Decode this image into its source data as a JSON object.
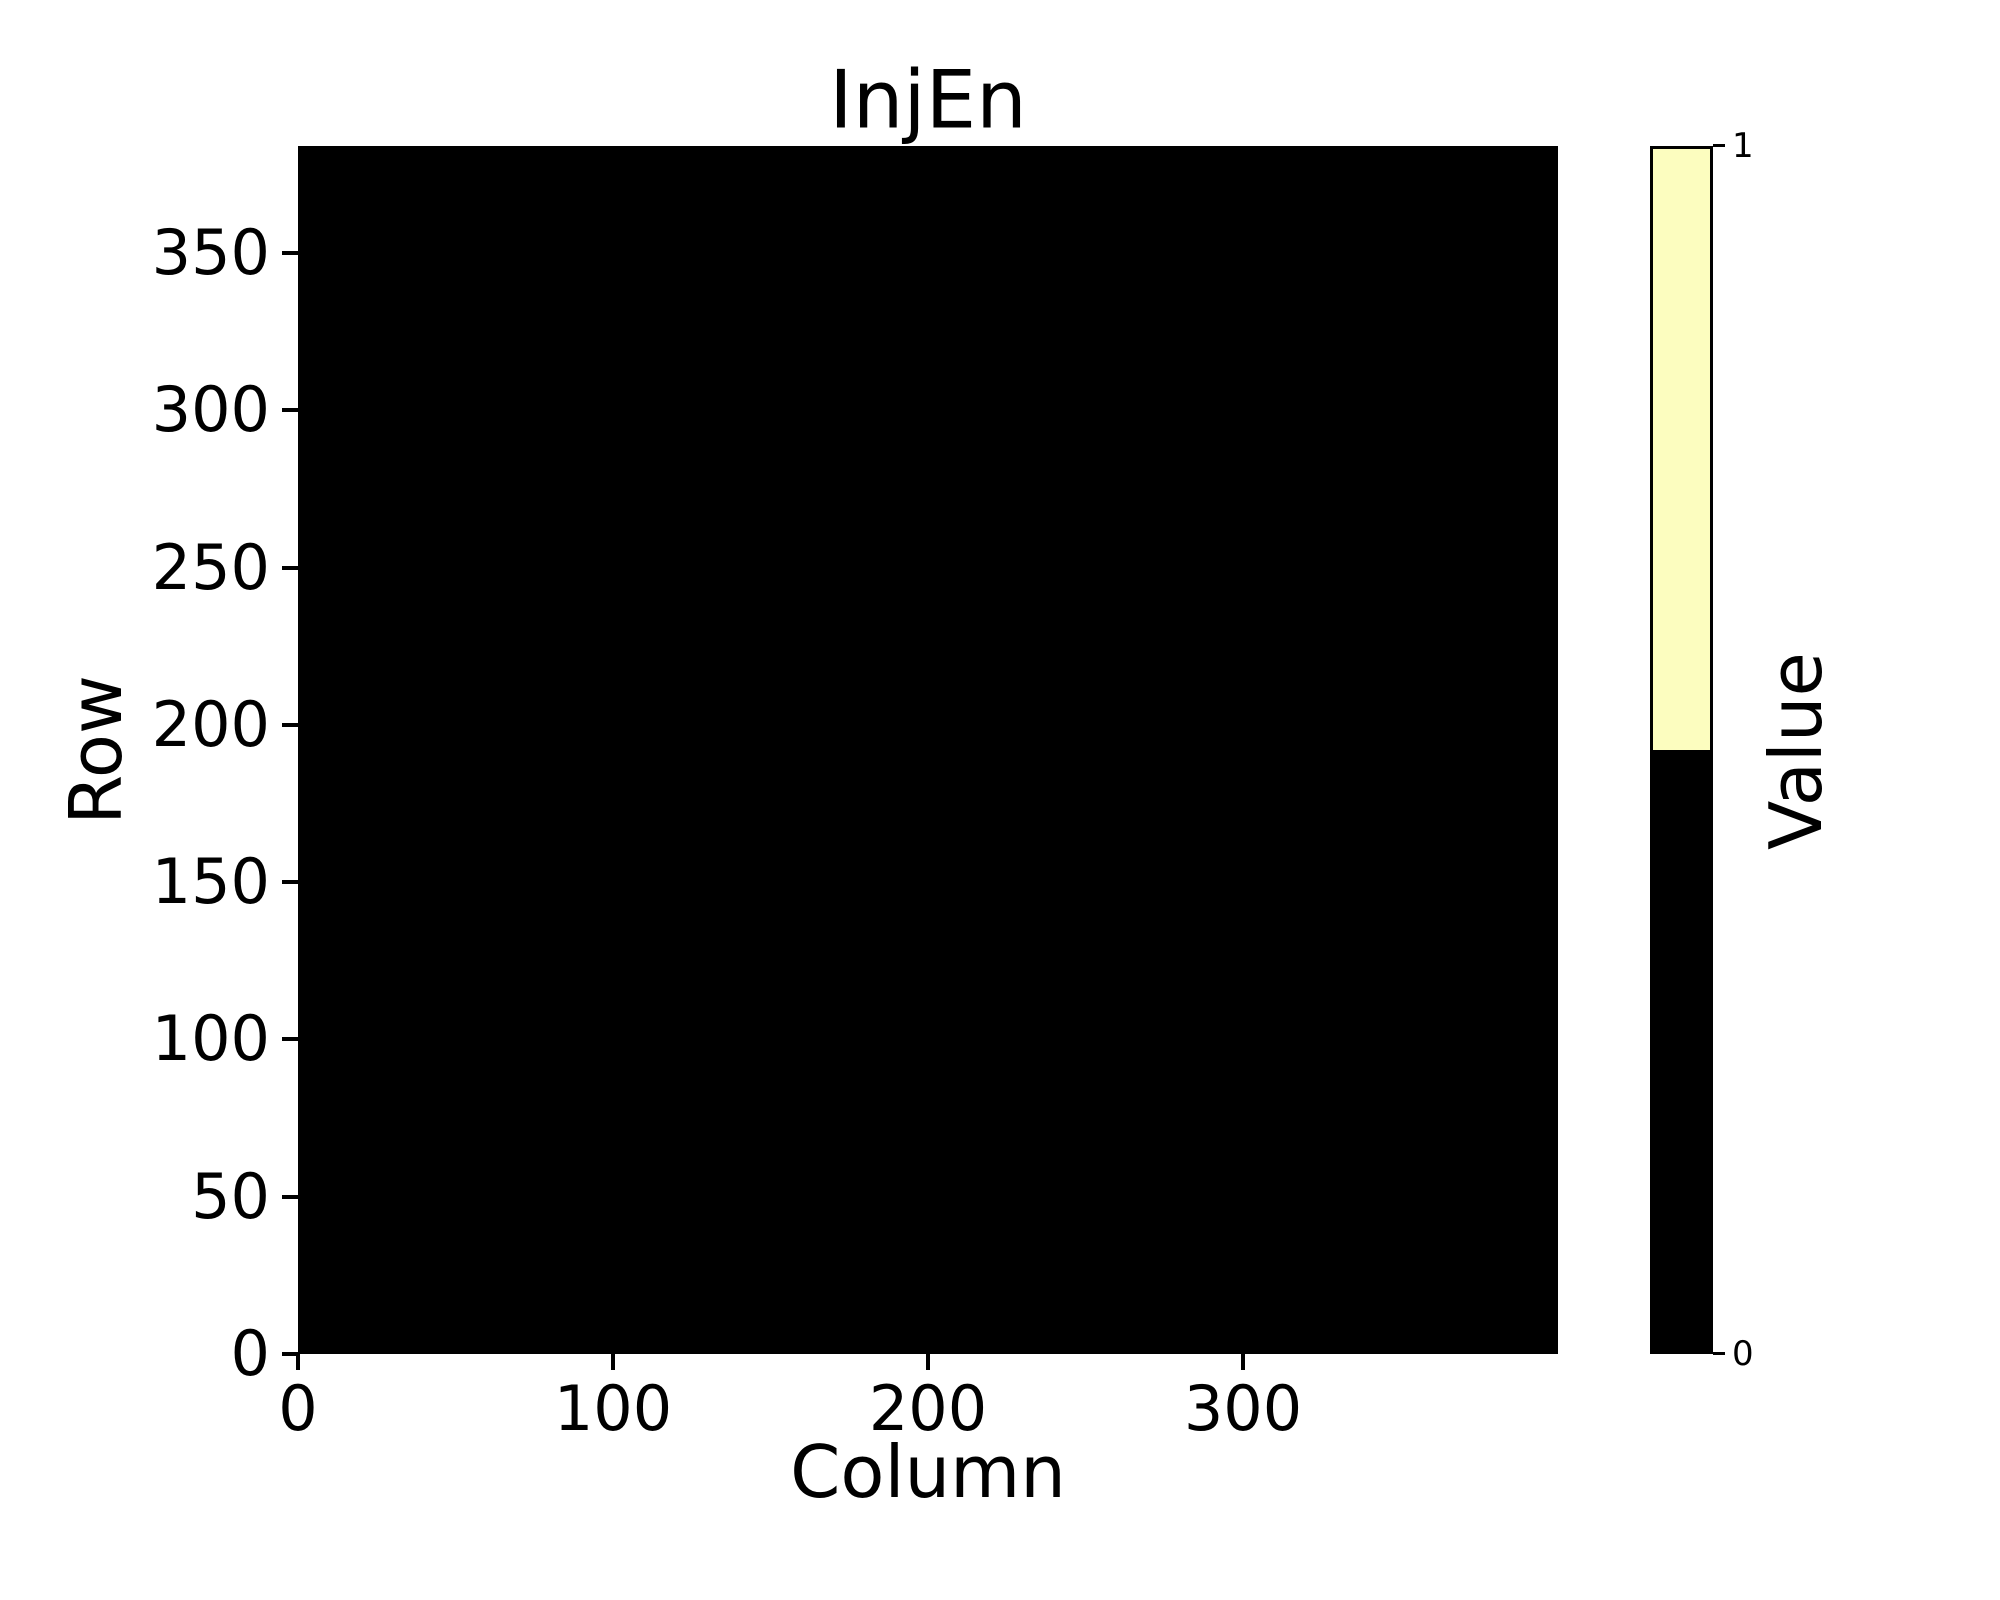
{
  "figure": {
    "background_color": "#ffffff",
    "text_color": "#000000"
  },
  "chart_data": {
    "type": "heatmap",
    "title": "InjEn",
    "xlabel": "Column",
    "ylabel": "Row",
    "x_range": [
      0,
      400
    ],
    "y_range": [
      0,
      384
    ],
    "x_ticks": [
      "0",
      "100",
      "200",
      "300"
    ],
    "x_tick_values": [
      0,
      100,
      200,
      300
    ],
    "y_ticks": [
      "0",
      "50",
      "100",
      "150",
      "200",
      "250",
      "300",
      "350"
    ],
    "y_tick_values": [
      0,
      50,
      100,
      150,
      200,
      250,
      300,
      350
    ],
    "n_cols": 400,
    "n_rows": 384,
    "uniform_value": 0,
    "values_note": "every cell of the 384x400 grid equals 0 (solid black map)",
    "cell_color_for_0": "#000000",
    "cell_color_for_1": "#FCFDBF",
    "grid": false,
    "legend": false,
    "colorbar": {
      "label": "Value",
      "tick_labels": [
        "1",
        "0"
      ],
      "tick_values": [
        1,
        0
      ],
      "segments": [
        {
          "value": 1,
          "color": "#FCFDBF",
          "fraction": 0.5,
          "position": "top"
        },
        {
          "value": 0,
          "color": "#000000",
          "fraction": 0.5,
          "position": "bottom"
        }
      ],
      "position": "right"
    }
  }
}
